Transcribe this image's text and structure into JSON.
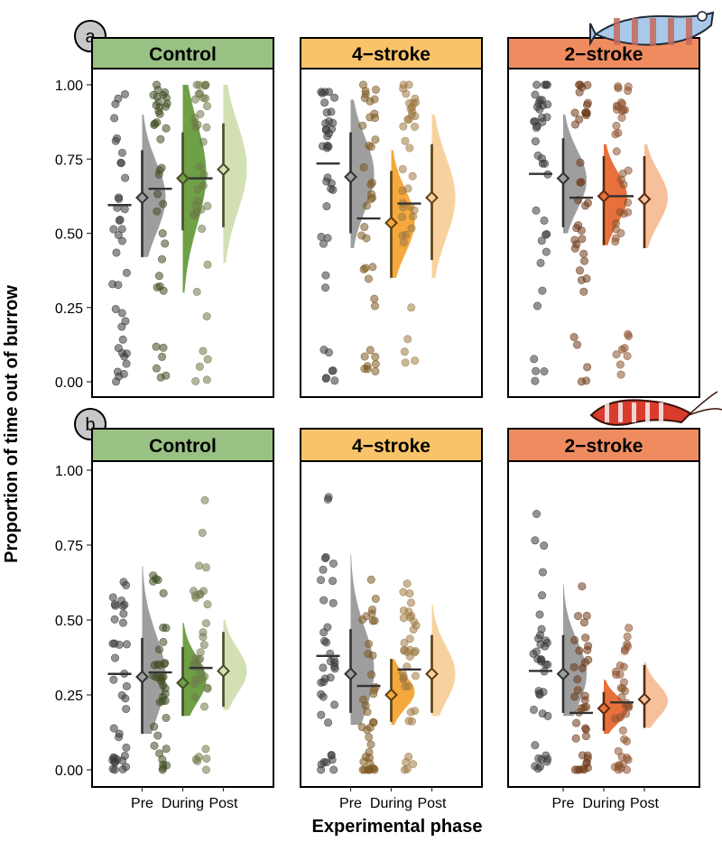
{
  "figure": {
    "ylabel": "Proportion of time out of burrow",
    "xlabel": "Experimental phase",
    "y_ticks": [
      "0.00",
      "0.25",
      "0.50",
      "0.75",
      "1.00"
    ]
  },
  "chart_data": {
    "type": "raincloud",
    "ylim": [
      0,
      1
    ],
    "x_categories": [
      "Pre",
      "During",
      "Post"
    ],
    "treatments": [
      "Control",
      "4−stroke",
      "2−stroke"
    ],
    "colors": {
      "strip": {
        "Control": "#99c184",
        "4−stroke": "#f8c369",
        "2−stroke": "#ef8c5f"
      },
      "Control": {
        "Pre": "#9e9e9e",
        "During": "#6ea046",
        "Post": "#d2e0b4"
      },
      "4−stroke": {
        "Pre": "#9e9e9e",
        "During": "#f5a83c",
        "Post": "#f8d29e"
      },
      "2−stroke": {
        "Pre": "#9e9e9e",
        "During": "#e8703c",
        "Post": "#f6c09a"
      },
      "points": {
        "Control": {
          "Pre": "#3a3a3a",
          "During": "#3f4d22",
          "Post": "#6f7a4a"
        },
        "4−stroke": {
          "Pre": "#3a3a3a",
          "During": "#7d5a22",
          "Post": "#9e7a44"
        },
        "2−stroke": {
          "Pre": "#3a3a3a",
          "During": "#6e3a18",
          "Post": "#8e5430"
        }
      }
    },
    "rows": [
      {
        "label": "a",
        "icon": "goby-fish-icon",
        "panels": [
          {
            "treatment": "Control",
            "groups": [
              {
                "phase": "Pre",
                "median": 0.595,
                "mean": 0.62,
                "ci": [
                  0.42,
                  0.78
                ],
                "peak": 0.62,
                "density_range": [
                  0.42,
                  0.9
                ]
              },
              {
                "phase": "During",
                "median": 0.65,
                "mean": 0.685,
                "ci": [
                  0.51,
                  0.84
                ],
                "peak": 0.7,
                "density_range": [
                  0.3,
                  1.0
                ]
              },
              {
                "phase": "Post",
                "median": 0.685,
                "mean": 0.715,
                "ci": [
                  0.52,
                  0.87
                ],
                "peak": 0.72,
                "density_range": [
                  0.4,
                  1.0
                ]
              }
            ]
          },
          {
            "treatment": "4−stroke",
            "groups": [
              {
                "phase": "Pre",
                "median": 0.735,
                "mean": 0.69,
                "ci": [
                  0.5,
                  0.84
                ],
                "peak": 0.7,
                "density_range": [
                  0.45,
                  0.95
                ]
              },
              {
                "phase": "During",
                "median": 0.55,
                "mean": 0.535,
                "ci": [
                  0.35,
                  0.71
                ],
                "peak": 0.54,
                "density_range": [
                  0.35,
                  0.78
                ]
              },
              {
                "phase": "Post",
                "median": 0.6,
                "mean": 0.62,
                "ci": [
                  0.41,
                  0.8
                ],
                "peak": 0.62,
                "density_range": [
                  0.35,
                  0.9
                ]
              }
            ]
          },
          {
            "treatment": "2−stroke",
            "groups": [
              {
                "phase": "Pre",
                "median": 0.7,
                "mean": 0.685,
                "ci": [
                  0.52,
                  0.82
                ],
                "peak": 0.68,
                "density_range": [
                  0.5,
                  0.9
                ]
              },
              {
                "phase": "During",
                "median": 0.62,
                "mean": 0.625,
                "ci": [
                  0.46,
                  0.76
                ],
                "peak": 0.62,
                "density_range": [
                  0.46,
                  0.8
                ]
              },
              {
                "phase": "Post",
                "median": 0.625,
                "mean": 0.615,
                "ci": [
                  0.45,
                  0.76
                ],
                "peak": 0.62,
                "density_range": [
                  0.45,
                  0.8
                ]
              }
            ]
          }
        ]
      },
      {
        "label": "b",
        "icon": "shrimp-icon",
        "panels": [
          {
            "treatment": "Control",
            "groups": [
              {
                "phase": "Pre",
                "median": 0.32,
                "mean": 0.31,
                "ci": [
                  0.12,
                  0.44
                ],
                "peak": 0.31,
                "density_range": [
                  0.12,
                  0.68
                ]
              },
              {
                "phase": "During",
                "median": 0.325,
                "mean": 0.29,
                "ci": [
                  0.18,
                  0.41
                ],
                "peak": 0.3,
                "density_range": [
                  0.18,
                  0.49
                ]
              },
              {
                "phase": "Post",
                "median": 0.34,
                "mean": 0.33,
                "ci": [
                  0.21,
                  0.46
                ],
                "peak": 0.33,
                "density_range": [
                  0.2,
                  0.5
                ]
              }
            ]
          },
          {
            "treatment": "4−stroke",
            "groups": [
              {
                "phase": "Pre",
                "median": 0.38,
                "mean": 0.32,
                "ci": [
                  0.19,
                  0.47
                ],
                "peak": 0.33,
                "density_range": [
                  0.15,
                  0.72
                ]
              },
              {
                "phase": "During",
                "median": 0.28,
                "mean": 0.25,
                "ci": [
                  0.16,
                  0.37
                ],
                "peak": 0.26,
                "density_range": [
                  0.15,
                  0.37
                ]
              },
              {
                "phase": "Post",
                "median": 0.335,
                "mean": 0.32,
                "ci": [
                  0.19,
                  0.45
                ],
                "peak": 0.32,
                "density_range": [
                  0.18,
                  0.55
                ]
              }
            ]
          },
          {
            "treatment": "2−stroke",
            "groups": [
              {
                "phase": "Pre",
                "median": 0.33,
                "mean": 0.32,
                "ci": [
                  0.19,
                  0.45
                ],
                "peak": 0.32,
                "density_range": [
                  0.18,
                  0.62
                ]
              },
              {
                "phase": "During",
                "median": 0.19,
                "mean": 0.205,
                "ci": [
                  0.13,
                  0.26
                ],
                "peak": 0.2,
                "density_range": [
                  0.12,
                  0.3
                ]
              },
              {
                "phase": "Post",
                "median": 0.225,
                "mean": 0.235,
                "ci": [
                  0.14,
                  0.35
                ],
                "peak": 0.23,
                "density_range": [
                  0.14,
                  0.36
                ]
              }
            ]
          }
        ]
      }
    ]
  }
}
